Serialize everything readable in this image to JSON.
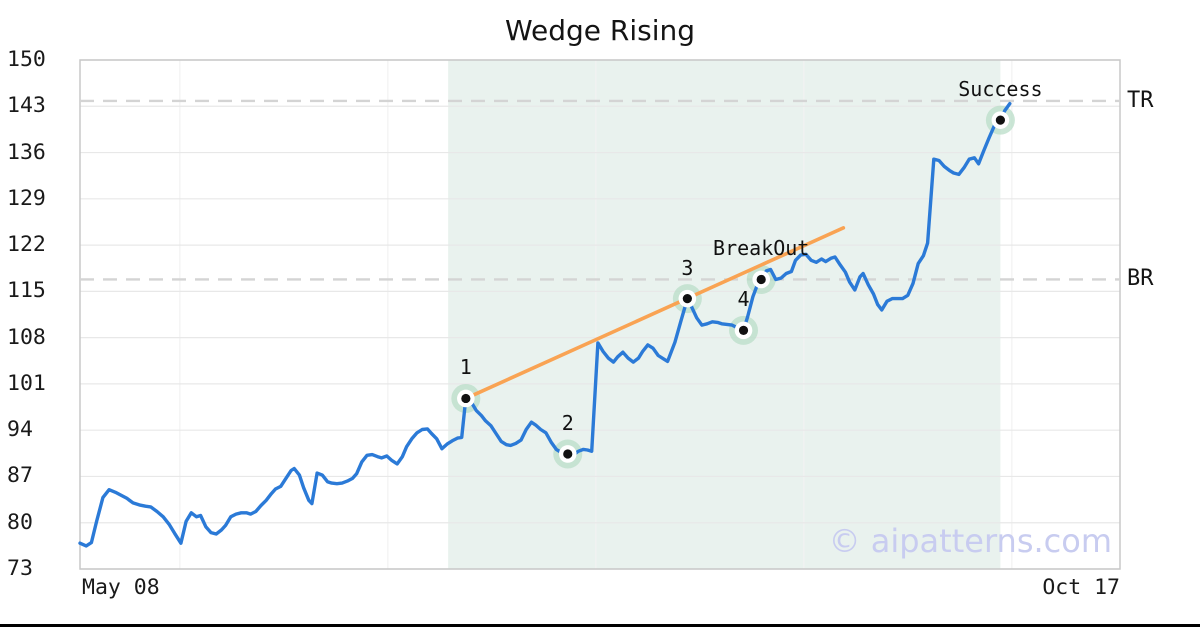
{
  "title": "Wedge Rising",
  "watermark": "© aipatterns.com",
  "colors": {
    "price_line": "#2b7ad7",
    "trendline": "#f9a353",
    "pattern_zone": "#e9f2ee",
    "marker_halo": "#b9ddc8",
    "marker_dot": "#111111",
    "level_dash": "#d4d4d4",
    "gridline_h": "#e8e8e8",
    "gridline_v": "#f2f2f2",
    "plot_frame": "#c8c8c8",
    "watermark_color": "#c8ccf0",
    "bottom_bar": "#000000"
  },
  "chart_data": {
    "type": "line",
    "title": "Wedge Rising",
    "xlabel": "",
    "ylabel": "",
    "ylim": [
      73,
      150
    ],
    "yticks": [
      73,
      80,
      87,
      94,
      101,
      108,
      115,
      122,
      129,
      136,
      143,
      150
    ],
    "xtick_labels": [
      "May 08",
      "Oct 17"
    ],
    "grid": "horizontal major + faint vertical",
    "legend": "none",
    "levels": [
      {
        "label": "TR",
        "value": 143.8
      },
      {
        "label": "BR",
        "value": 116.8
      }
    ],
    "pattern_zone": {
      "x_start": 0.354,
      "x_end": 0.885
    },
    "trendline": {
      "x1": 0.371,
      "y1": 98.8,
      "x2": 0.734,
      "y2": 124.6
    },
    "vgrid_x": [
      0.096,
      0.296,
      0.496,
      0.696,
      0.896
    ],
    "markers": [
      {
        "label": "1",
        "x": 0.371,
        "value": 98.8
      },
      {
        "label": "2",
        "x": 0.469,
        "value": 90.4
      },
      {
        "label": "3",
        "x": 0.584,
        "value": 113.9
      },
      {
        "label": "4",
        "x": 0.638,
        "value": 109.1
      },
      {
        "label": "BreakOut",
        "x": 0.655,
        "value": 116.8
      },
      {
        "label": "Success",
        "x": 0.885,
        "value": 140.9
      }
    ],
    "series": [
      {
        "name": "price",
        "points": [
          [
            0,
            76.9
          ],
          [
            0.006,
            76.5
          ],
          [
            0.011,
            77
          ],
          [
            0.016,
            80.2
          ],
          [
            0.022,
            83.8
          ],
          [
            0.028,
            85
          ],
          [
            0.034,
            84.6
          ],
          [
            0.039,
            84.2
          ],
          [
            0.045,
            83.7
          ],
          [
            0.051,
            83
          ],
          [
            0.057,
            82.7
          ],
          [
            0.063,
            82.5
          ],
          [
            0.068,
            82.4
          ],
          [
            0.074,
            81.7
          ],
          [
            0.08,
            80.9
          ],
          [
            0.086,
            79.7
          ],
          [
            0.091,
            78.4
          ],
          [
            0.097,
            76.9
          ],
          [
            0.102,
            80.2
          ],
          [
            0.107,
            81.5
          ],
          [
            0.112,
            80.9
          ],
          [
            0.116,
            81.1
          ],
          [
            0.121,
            79.4
          ],
          [
            0.126,
            78.5
          ],
          [
            0.131,
            78.3
          ],
          [
            0.136,
            78.9
          ],
          [
            0.14,
            79.6
          ],
          [
            0.145,
            80.9
          ],
          [
            0.15,
            81.3
          ],
          [
            0.155,
            81.5
          ],
          [
            0.16,
            81.5
          ],
          [
            0.164,
            81.3
          ],
          [
            0.169,
            81.7
          ],
          [
            0.174,
            82.6
          ],
          [
            0.179,
            83.4
          ],
          [
            0.184,
            84.4
          ],
          [
            0.188,
            85.1
          ],
          [
            0.193,
            85.5
          ],
          [
            0.198,
            86.7
          ],
          [
            0.203,
            87.9
          ],
          [
            0.206,
            88.2
          ],
          [
            0.211,
            87.2
          ],
          [
            0.215,
            85.3
          ],
          [
            0.22,
            83.4
          ],
          [
            0.223,
            82.9
          ],
          [
            0.228,
            87.5
          ],
          [
            0.233,
            87.2
          ],
          [
            0.238,
            86.2
          ],
          [
            0.242,
            86
          ],
          [
            0.247,
            85.9
          ],
          [
            0.252,
            86
          ],
          [
            0.257,
            86.3
          ],
          [
            0.262,
            86.7
          ],
          [
            0.266,
            87.4
          ],
          [
            0.271,
            89.2
          ],
          [
            0.276,
            90.2
          ],
          [
            0.281,
            90.3
          ],
          [
            0.286,
            90
          ],
          [
            0.29,
            89.8
          ],
          [
            0.295,
            90.1
          ],
          [
            0.3,
            89.4
          ],
          [
            0.305,
            88.9
          ],
          [
            0.31,
            90
          ],
          [
            0.314,
            91.5
          ],
          [
            0.319,
            92.7
          ],
          [
            0.324,
            93.6
          ],
          [
            0.329,
            94.1
          ],
          [
            0.334,
            94.2
          ],
          [
            0.338,
            93.5
          ],
          [
            0.343,
            92.7
          ],
          [
            0.348,
            91.2
          ],
          [
            0.353,
            91.9
          ],
          [
            0.358,
            92.4
          ],
          [
            0.363,
            92.8
          ],
          [
            0.367,
            92.9
          ],
          [
            0.371,
            98.8
          ],
          [
            0.376,
            98.3
          ],
          [
            0.381,
            97
          ],
          [
            0.386,
            96.2
          ],
          [
            0.39,
            95.4
          ],
          [
            0.395,
            94.7
          ],
          [
            0.4,
            93.5
          ],
          [
            0.405,
            92.3
          ],
          [
            0.41,
            91.8
          ],
          [
            0.414,
            91.7
          ],
          [
            0.419,
            92
          ],
          [
            0.424,
            92.5
          ],
          [
            0.429,
            94.1
          ],
          [
            0.434,
            95.2
          ],
          [
            0.438,
            94.8
          ],
          [
            0.443,
            94.1
          ],
          [
            0.448,
            93.6
          ],
          [
            0.453,
            92.2
          ],
          [
            0.458,
            91.1
          ],
          [
            0.462,
            90.7
          ],
          [
            0.465,
            90.5
          ],
          [
            0.469,
            90.4
          ],
          [
            0.474,
            90.2
          ],
          [
            0.479,
            90.8
          ],
          [
            0.484,
            91.1
          ],
          [
            0.488,
            91
          ],
          [
            0.492,
            90.8
          ],
          [
            0.498,
            107.2
          ],
          [
            0.503,
            105.9
          ],
          [
            0.508,
            104.9
          ],
          [
            0.513,
            104.3
          ],
          [
            0.517,
            105.1
          ],
          [
            0.522,
            105.8
          ],
          [
            0.527,
            104.9
          ],
          [
            0.532,
            104.3
          ],
          [
            0.537,
            104.9
          ],
          [
            0.541,
            105.9
          ],
          [
            0.546,
            106.9
          ],
          [
            0.551,
            106.4
          ],
          [
            0.556,
            105.3
          ],
          [
            0.561,
            104.8
          ],
          [
            0.565,
            104.4
          ],
          [
            0.572,
            107.3
          ],
          [
            0.578,
            110.6
          ],
          [
            0.584,
            113.9
          ],
          [
            0.588,
            112.7
          ],
          [
            0.593,
            111
          ],
          [
            0.598,
            109.9
          ],
          [
            0.603,
            110.1
          ],
          [
            0.608,
            110.4
          ],
          [
            0.613,
            110.3
          ],
          [
            0.617,
            110.1
          ],
          [
            0.622,
            110
          ],
          [
            0.627,
            109.9
          ],
          [
            0.632,
            109.5
          ],
          [
            0.638,
            109.1
          ],
          [
            0.642,
            111.2
          ],
          [
            0.647,
            114.2
          ],
          [
            0.652,
            116.3
          ],
          [
            0.655,
            116.8
          ],
          [
            0.66,
            118.1
          ],
          [
            0.664,
            118.3
          ],
          [
            0.669,
            116.8
          ],
          [
            0.674,
            117
          ],
          [
            0.679,
            117.7
          ],
          [
            0.684,
            118
          ],
          [
            0.688,
            119.7
          ],
          [
            0.693,
            120.5
          ],
          [
            0.698,
            120.6
          ],
          [
            0.703,
            119.7
          ],
          [
            0.708,
            119.4
          ],
          [
            0.713,
            119.9
          ],
          [
            0.717,
            119.5
          ],
          [
            0.722,
            120
          ],
          [
            0.726,
            120.2
          ],
          [
            0.731,
            119
          ],
          [
            0.736,
            117.9
          ],
          [
            0.74,
            116.4
          ],
          [
            0.745,
            115.2
          ],
          [
            0.75,
            117.2
          ],
          [
            0.753,
            117.7
          ],
          [
            0.758,
            116
          ],
          [
            0.763,
            114.6
          ],
          [
            0.767,
            113
          ],
          [
            0.771,
            112.2
          ],
          [
            0.776,
            113.5
          ],
          [
            0.781,
            113.9
          ],
          [
            0.786,
            113.9
          ],
          [
            0.791,
            113.9
          ],
          [
            0.796,
            114.4
          ],
          [
            0.801,
            116.2
          ],
          [
            0.806,
            119.2
          ],
          [
            0.811,
            120.4
          ],
          [
            0.815,
            122.3
          ],
          [
            0.821,
            135
          ],
          [
            0.826,
            134.8
          ],
          [
            0.831,
            133.9
          ],
          [
            0.836,
            133.3
          ],
          [
            0.84,
            132.9
          ],
          [
            0.845,
            132.7
          ],
          [
            0.85,
            133.7
          ],
          [
            0.855,
            135
          ],
          [
            0.86,
            135.2
          ],
          [
            0.864,
            134.3
          ],
          [
            0.869,
            136.3
          ],
          [
            0.874,
            138.2
          ],
          [
            0.879,
            140
          ],
          [
            0.885,
            140.9
          ],
          [
            0.889,
            142.3
          ],
          [
            0.894,
            143.4
          ]
        ]
      }
    ]
  }
}
